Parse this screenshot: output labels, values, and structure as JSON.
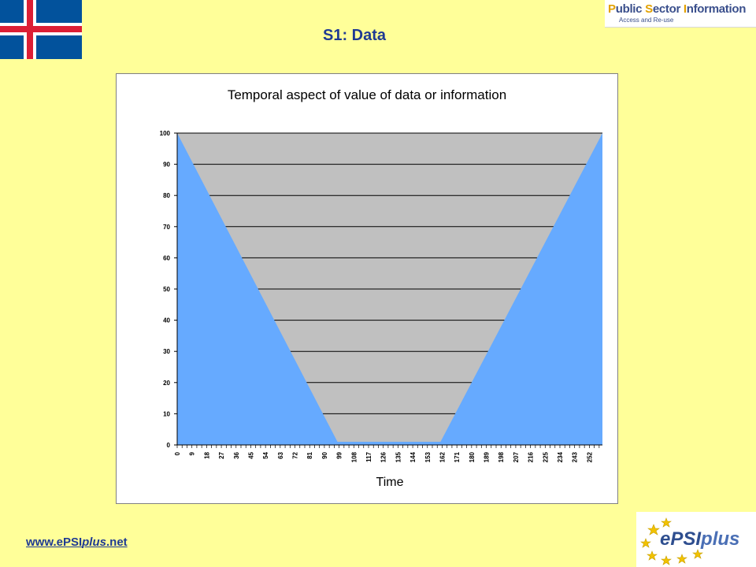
{
  "slide": {
    "title": "S1: Data",
    "footer_link_prefix": "www.ePSI",
    "footer_link_italic": "plus",
    "footer_link_suffix": ".net"
  },
  "logos": {
    "psi": {
      "letters": [
        "P",
        "S",
        "I"
      ],
      "words": [
        "ublic ",
        "ector ",
        "nformation"
      ],
      "subtitle": "Access and Re-use"
    },
    "epsiplus": {
      "text_e": "e",
      "text_psi": "PSI",
      "text_plus": "plus"
    }
  },
  "colors": {
    "background": "#FFFF99",
    "title": "#1F3A93",
    "flag_blue": "#02529C",
    "flag_white": "#FFFFFF",
    "flag_red": "#DC1E35",
    "area_fill": "#66AAFF",
    "plot_bg": "#C0C0C0",
    "gridline": "#000000"
  },
  "chart_data": {
    "type": "area",
    "title": "Temporal aspect of value of data or information",
    "xlabel": "Time",
    "ylabel": "",
    "ylim": [
      0,
      100
    ],
    "yticks": [
      0,
      10,
      20,
      30,
      40,
      50,
      60,
      70,
      80,
      90,
      100
    ],
    "xlim": [
      0,
      260
    ],
    "xticks": [
      0,
      9,
      18,
      27,
      36,
      45,
      54,
      63,
      72,
      81,
      90,
      99,
      108,
      117,
      126,
      135,
      144,
      153,
      162,
      171,
      180,
      189,
      198,
      207,
      216,
      225,
      234,
      243,
      252
    ],
    "grid": true,
    "legend": "none",
    "series": [
      {
        "x": [
          0,
          98,
          161,
          260
        ],
        "values": [
          100,
          1,
          1,
          100
        ]
      }
    ]
  }
}
